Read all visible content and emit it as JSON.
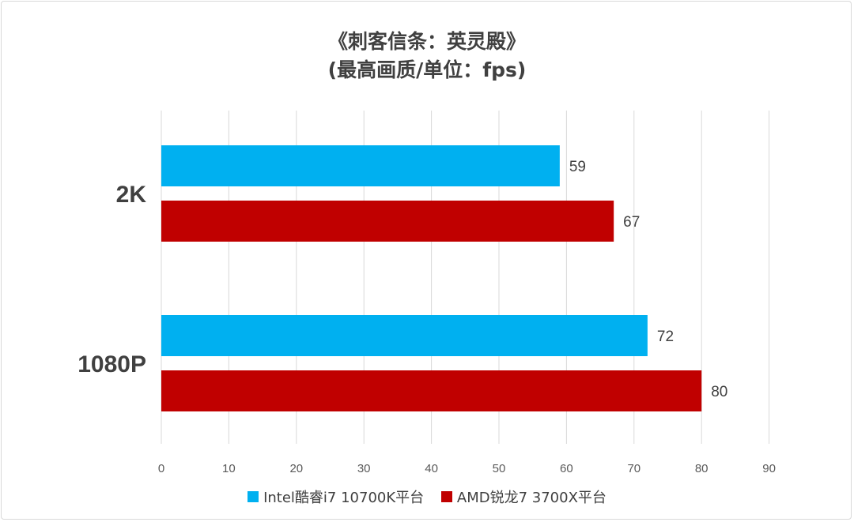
{
  "chart_data": {
    "type": "bar",
    "orientation": "horizontal",
    "title": "《刺客信条：英灵殿》",
    "subtitle": "(最高画质/单位：fps)",
    "categories": [
      "2K",
      "1080P"
    ],
    "series": [
      {
        "name": "Intel酷睿i7 10700K平台",
        "color": "#00b0f0",
        "values": [
          59,
          72
        ]
      },
      {
        "name": "AMD锐龙7 3700X平台",
        "color": "#c00000",
        "values": [
          67,
          80
        ]
      }
    ],
    "xlim": [
      0,
      90
    ],
    "xticks": [
      "0",
      "10",
      "20",
      "30",
      "40",
      "50",
      "60",
      "70",
      "80",
      "90"
    ],
    "grid": true,
    "legend_position": "bottom"
  }
}
